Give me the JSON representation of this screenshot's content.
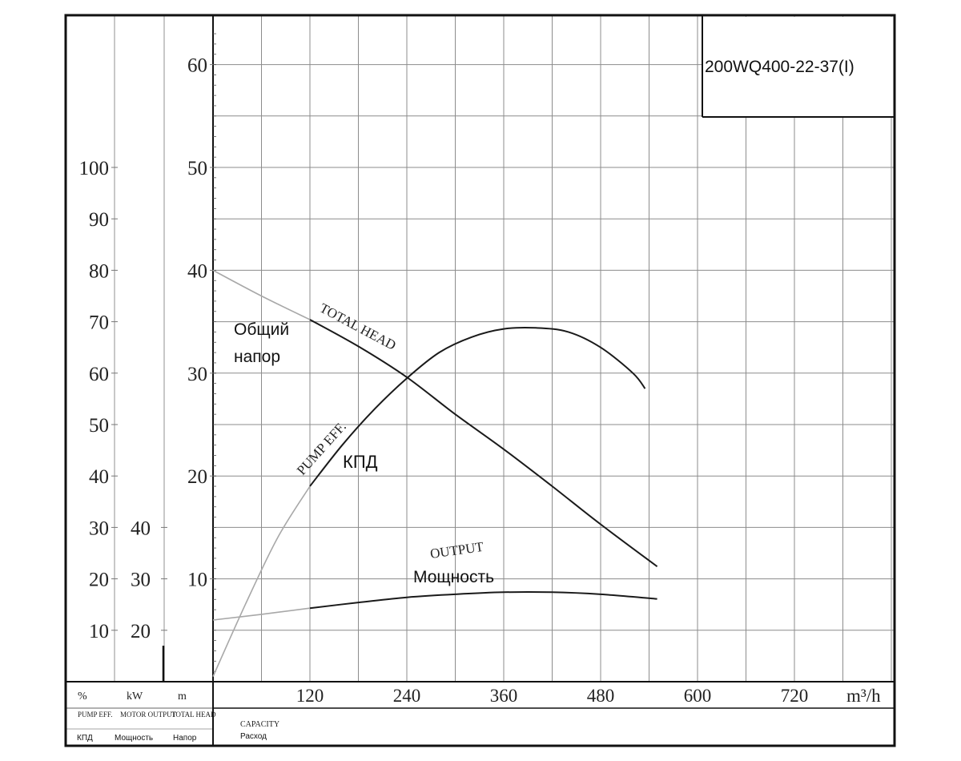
{
  "chart_data": {
    "type": "line",
    "model_label": "200WQ400-22-37(I)",
    "x_axis": {
      "unit": "m³/h",
      "ticks": [
        "120",
        "240",
        "360",
        "480",
        "600",
        "720"
      ],
      "range": [
        0,
        840
      ],
      "label_en": "CAPACITY",
      "label_ru": "Расход"
    },
    "axis_columns": [
      {
        "key": "eff",
        "unit": "%",
        "label_en": "PUMP EFF.",
        "label_ru": "КПД",
        "ticks": [
          "10",
          "20",
          "30",
          "40",
          "50",
          "60",
          "70",
          "80",
          "90",
          "100"
        ],
        "values": [
          10,
          20,
          30,
          40,
          50,
          60,
          70,
          80,
          90,
          100
        ]
      },
      {
        "key": "power",
        "unit": "kW",
        "label_en": "MOTOR OUTPUT",
        "label_ru": "Мощность",
        "ticks": [
          "20",
          "30",
          "40"
        ],
        "values": [
          20,
          30,
          40
        ]
      },
      {
        "key": "head",
        "unit": "m",
        "label_en": "TOTAL HEAD",
        "label_ru": "Напор",
        "ticks": [
          "10",
          "20",
          "30",
          "40",
          "50",
          "60"
        ],
        "values": [
          10,
          20,
          30,
          40,
          50,
          60
        ]
      }
    ],
    "series": [
      {
        "key": "head",
        "name": "TOTAL HEAD",
        "name_ru": "Общий напор",
        "axis": "head",
        "x": [
          0,
          60,
          120,
          180,
          240,
          300,
          360,
          420,
          480,
          550
        ],
        "y": [
          40,
          37.5,
          35.2,
          32.6,
          29.6,
          26.0,
          22.6,
          19.0,
          15.3,
          11.2
        ],
        "solid_from_x": 120
      },
      {
        "key": "eff",
        "name": "PUMP EFF.",
        "name_ru": "КПД",
        "axis": "eff",
        "x": [
          0,
          40,
          80,
          120,
          160,
          200,
          240,
          280,
          320,
          360,
          400,
          440,
          480,
          520,
          535
        ],
        "y": [
          1,
          15,
          28,
          38,
          46,
          53,
          59,
          64,
          67,
          68.6,
          68.8,
          68,
          65,
          60,
          57
        ],
        "solid_from_x": 120
      },
      {
        "key": "output",
        "name": "OUTPUT",
        "name_ru": "Мощность",
        "axis": "power",
        "x": [
          0,
          60,
          120,
          180,
          240,
          300,
          360,
          420,
          480,
          550
        ],
        "y": [
          22,
          23.1,
          24.3,
          25.4,
          26.4,
          27.0,
          27.4,
          27.4,
          27.0,
          26.1
        ],
        "solid_from_x": 120
      }
    ]
  }
}
